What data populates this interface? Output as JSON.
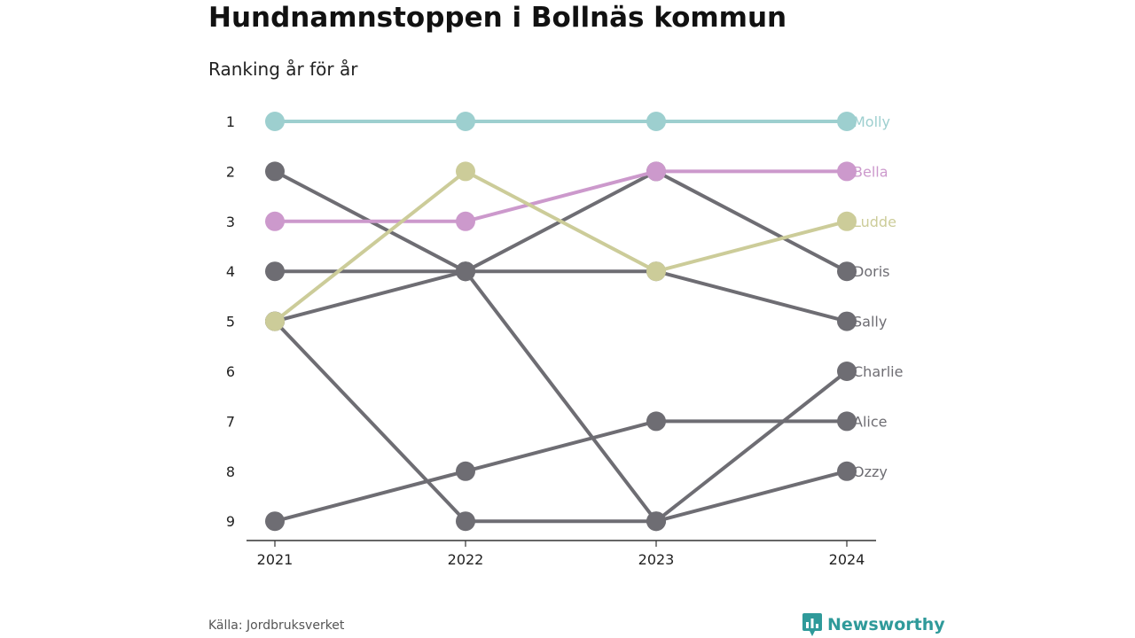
{
  "title": "Hundnamnstoppen i Bollnäs kommun",
  "subtitle": "Ranking år för år",
  "source": "Källa: Jordbruksverket",
  "brand": "Newsworthy",
  "chart_data": {
    "type": "line",
    "x": [
      "2021",
      "2022",
      "2023",
      "2024"
    ],
    "y_ticks": [
      "1",
      "2",
      "3",
      "4",
      "5",
      "6",
      "7",
      "8",
      "9"
    ],
    "ylim": [
      1,
      9
    ],
    "y_reversed": true,
    "grid": false,
    "series": [
      {
        "name": "Molly",
        "values": [
          1,
          1,
          1,
          1
        ],
        "color": "#9dcfcf"
      },
      {
        "name": "Bella",
        "values": [
          3,
          3,
          2,
          2
        ],
        "color": "#cc99cc"
      },
      {
        "name": "Ludde",
        "values": [
          5,
          2,
          4,
          3
        ],
        "color": "#cccc99"
      },
      {
        "name": "Doris",
        "values": [
          2,
          4,
          2,
          4
        ],
        "color": "#6e6d73"
      },
      {
        "name": "Sally",
        "values": [
          4,
          4,
          4,
          5
        ],
        "color": "#6e6d73"
      },
      {
        "name": "Charlie",
        "values": [
          5,
          4,
          9,
          6
        ],
        "color": "#6e6d73"
      },
      {
        "name": "Alice",
        "values": [
          9,
          8,
          7,
          7
        ],
        "color": "#6e6d73"
      },
      {
        "name": "Ozzy",
        "values": [
          5,
          9,
          9,
          8
        ],
        "color": "#6e6d73"
      }
    ]
  }
}
